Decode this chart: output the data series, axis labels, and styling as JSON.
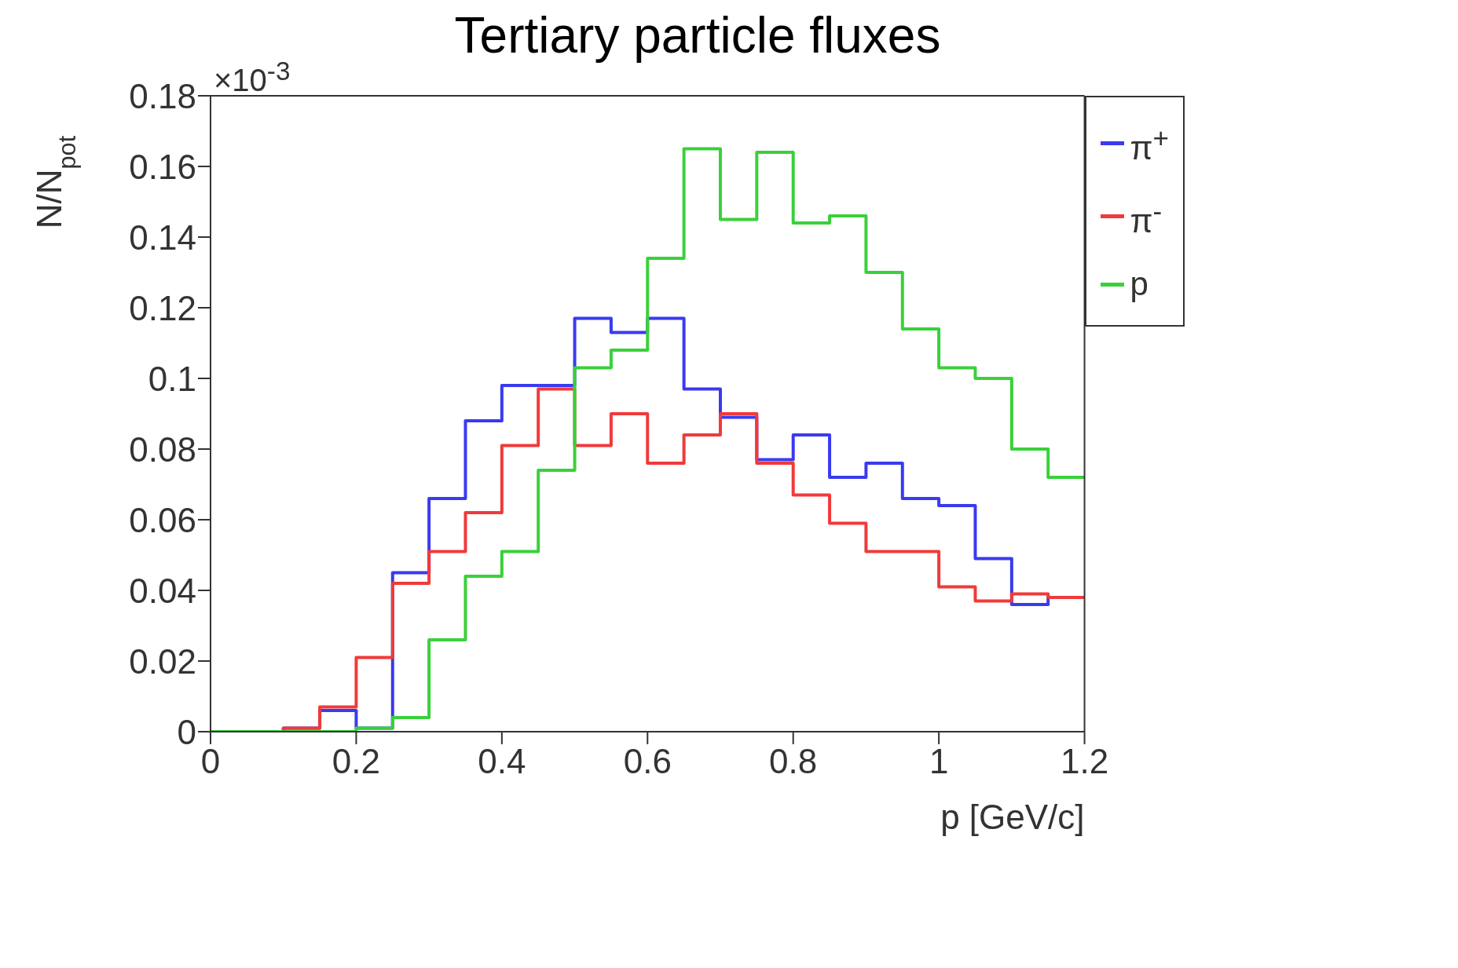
{
  "chart_data": {
    "type": "histogram",
    "title": "Tertiary particle fluxes",
    "xlabel": "p [GeV/c]",
    "ylabel": "N/N$_{pot}$",
    "annotations": [
      "×10$^{-3}$"
    ],
    "bins": [
      0,
      0.05,
      0.1,
      0.15,
      0.2,
      0.25,
      0.3,
      0.35,
      0.4,
      0.45,
      0.5,
      0.55,
      0.6,
      0.65,
      0.7,
      0.75,
      0.8,
      0.85,
      0.9,
      0.95,
      1.0,
      1.05,
      1.1,
      1.15,
      1.2
    ],
    "series": [
      {
        "name": "π$^{+}$",
        "color": "#3a3af0",
        "values": [
          0,
          0,
          0.001,
          0.006,
          0.001,
          0.045,
          0.066,
          0.088,
          0.098,
          0.098,
          0.117,
          0.113,
          0.117,
          0.097,
          0.089,
          0.077,
          0.084,
          0.072,
          0.076,
          0.066,
          0.064,
          0.049,
          0.036,
          0.038
        ]
      },
      {
        "name": "π$^{-}$",
        "color": "#f03a3a",
        "values": [
          0,
          0,
          0.001,
          0.007,
          0.021,
          0.042,
          0.051,
          0.062,
          0.081,
          0.097,
          0.081,
          0.09,
          0.076,
          0.084,
          0.09,
          0.076,
          0.067,
          0.059,
          0.051,
          0.051,
          0.041,
          0.037,
          0.039,
          0.038
        ]
      },
      {
        "name": "p",
        "color": "#3ad03a",
        "values": [
          0,
          0,
          0,
          0,
          0.001,
          0.004,
          0.026,
          0.044,
          0.051,
          0.074,
          0.103,
          0.108,
          0.134,
          0.165,
          0.145,
          0.164,
          0.144,
          0.146,
          0.13,
          0.114,
          0.103,
          0.1,
          0.08,
          0.072
        ]
      }
    ],
    "xlim": [
      0,
      1.2
    ],
    "xticks": [
      0,
      0.2,
      0.4,
      0.6,
      0.8,
      1,
      1.2
    ],
    "ylim": [
      0,
      0.18
    ],
    "yticks": [
      0,
      0.02,
      0.04,
      0.06,
      0.08,
      0.1,
      0.12,
      0.14,
      0.16,
      0.18
    ],
    "grid": false,
    "legend": "top right"
  }
}
